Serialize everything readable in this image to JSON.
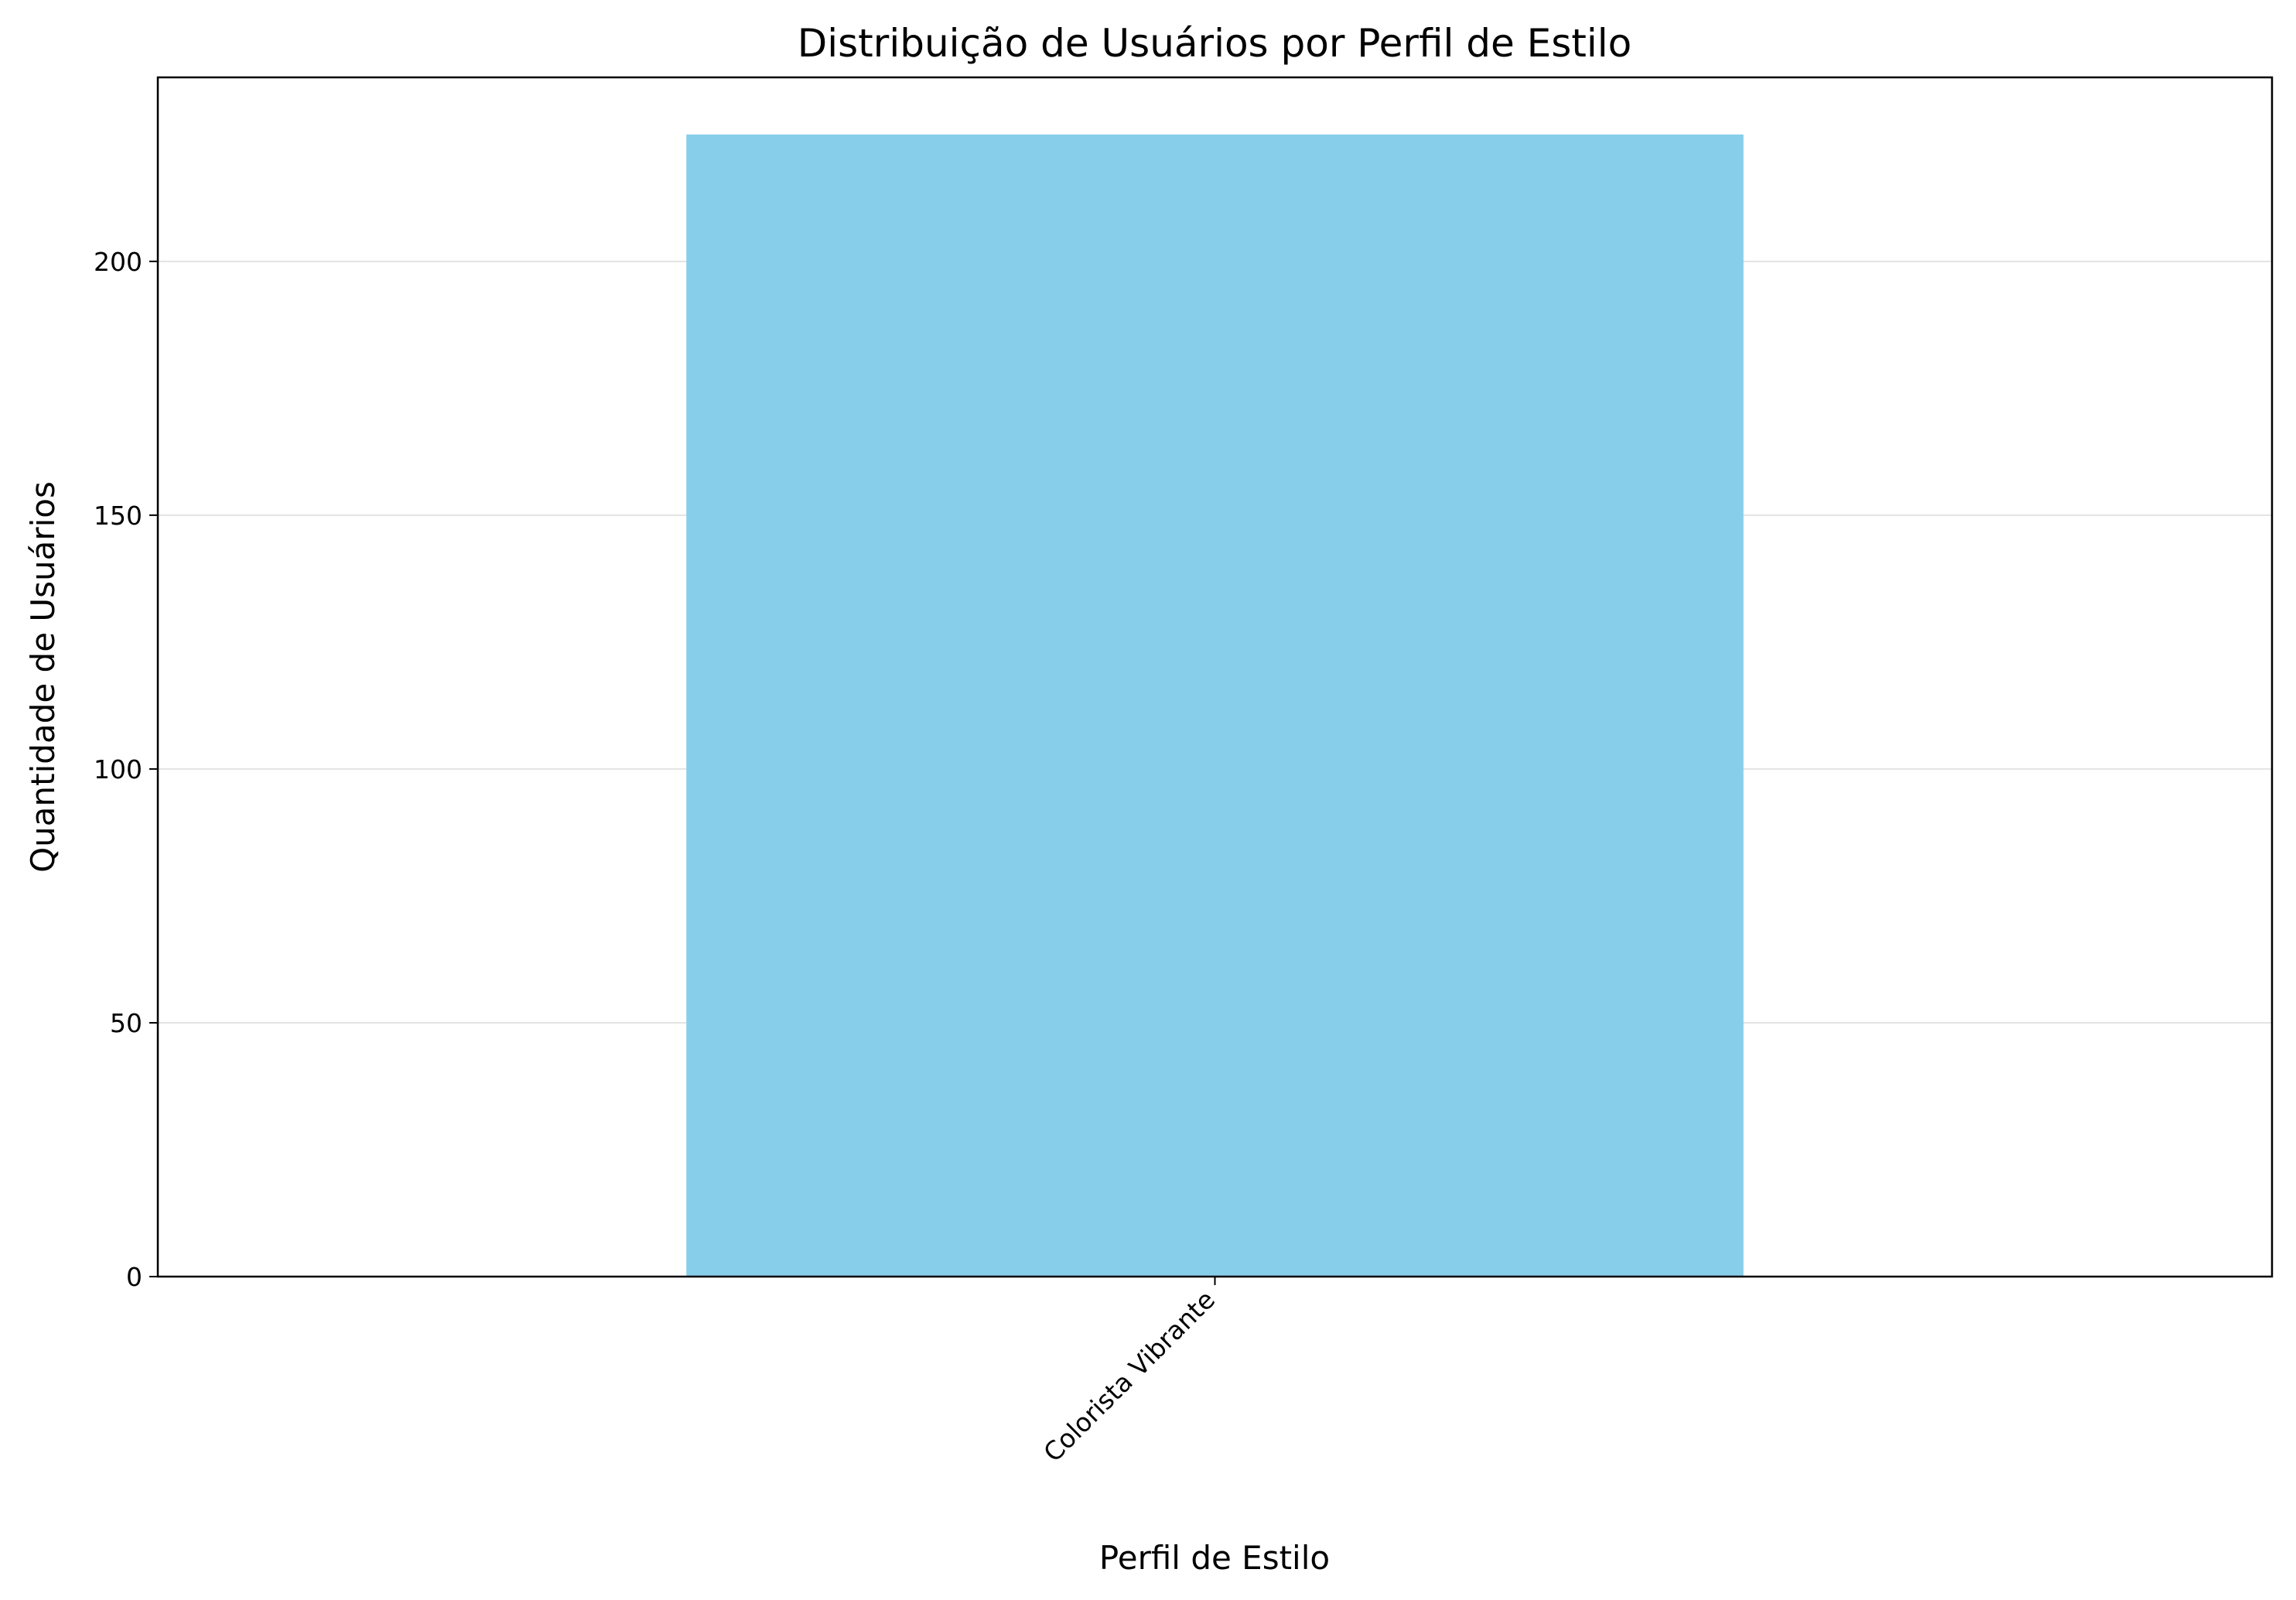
{
  "chart_data": {
    "type": "bar",
    "title": "Distribuição de Usuários por Perfil de Estilo",
    "xlabel": "Perfil de Estilo",
    "ylabel": "Quantidade de Usuários",
    "categories": [
      "Colorista Vibrante"
    ],
    "values": [
      225
    ],
    "ylim": [
      0,
      236.25
    ],
    "yticks": [
      0,
      50,
      100,
      150,
      200
    ],
    "grid": "horizontal",
    "bar_color": "#87CEEB"
  }
}
